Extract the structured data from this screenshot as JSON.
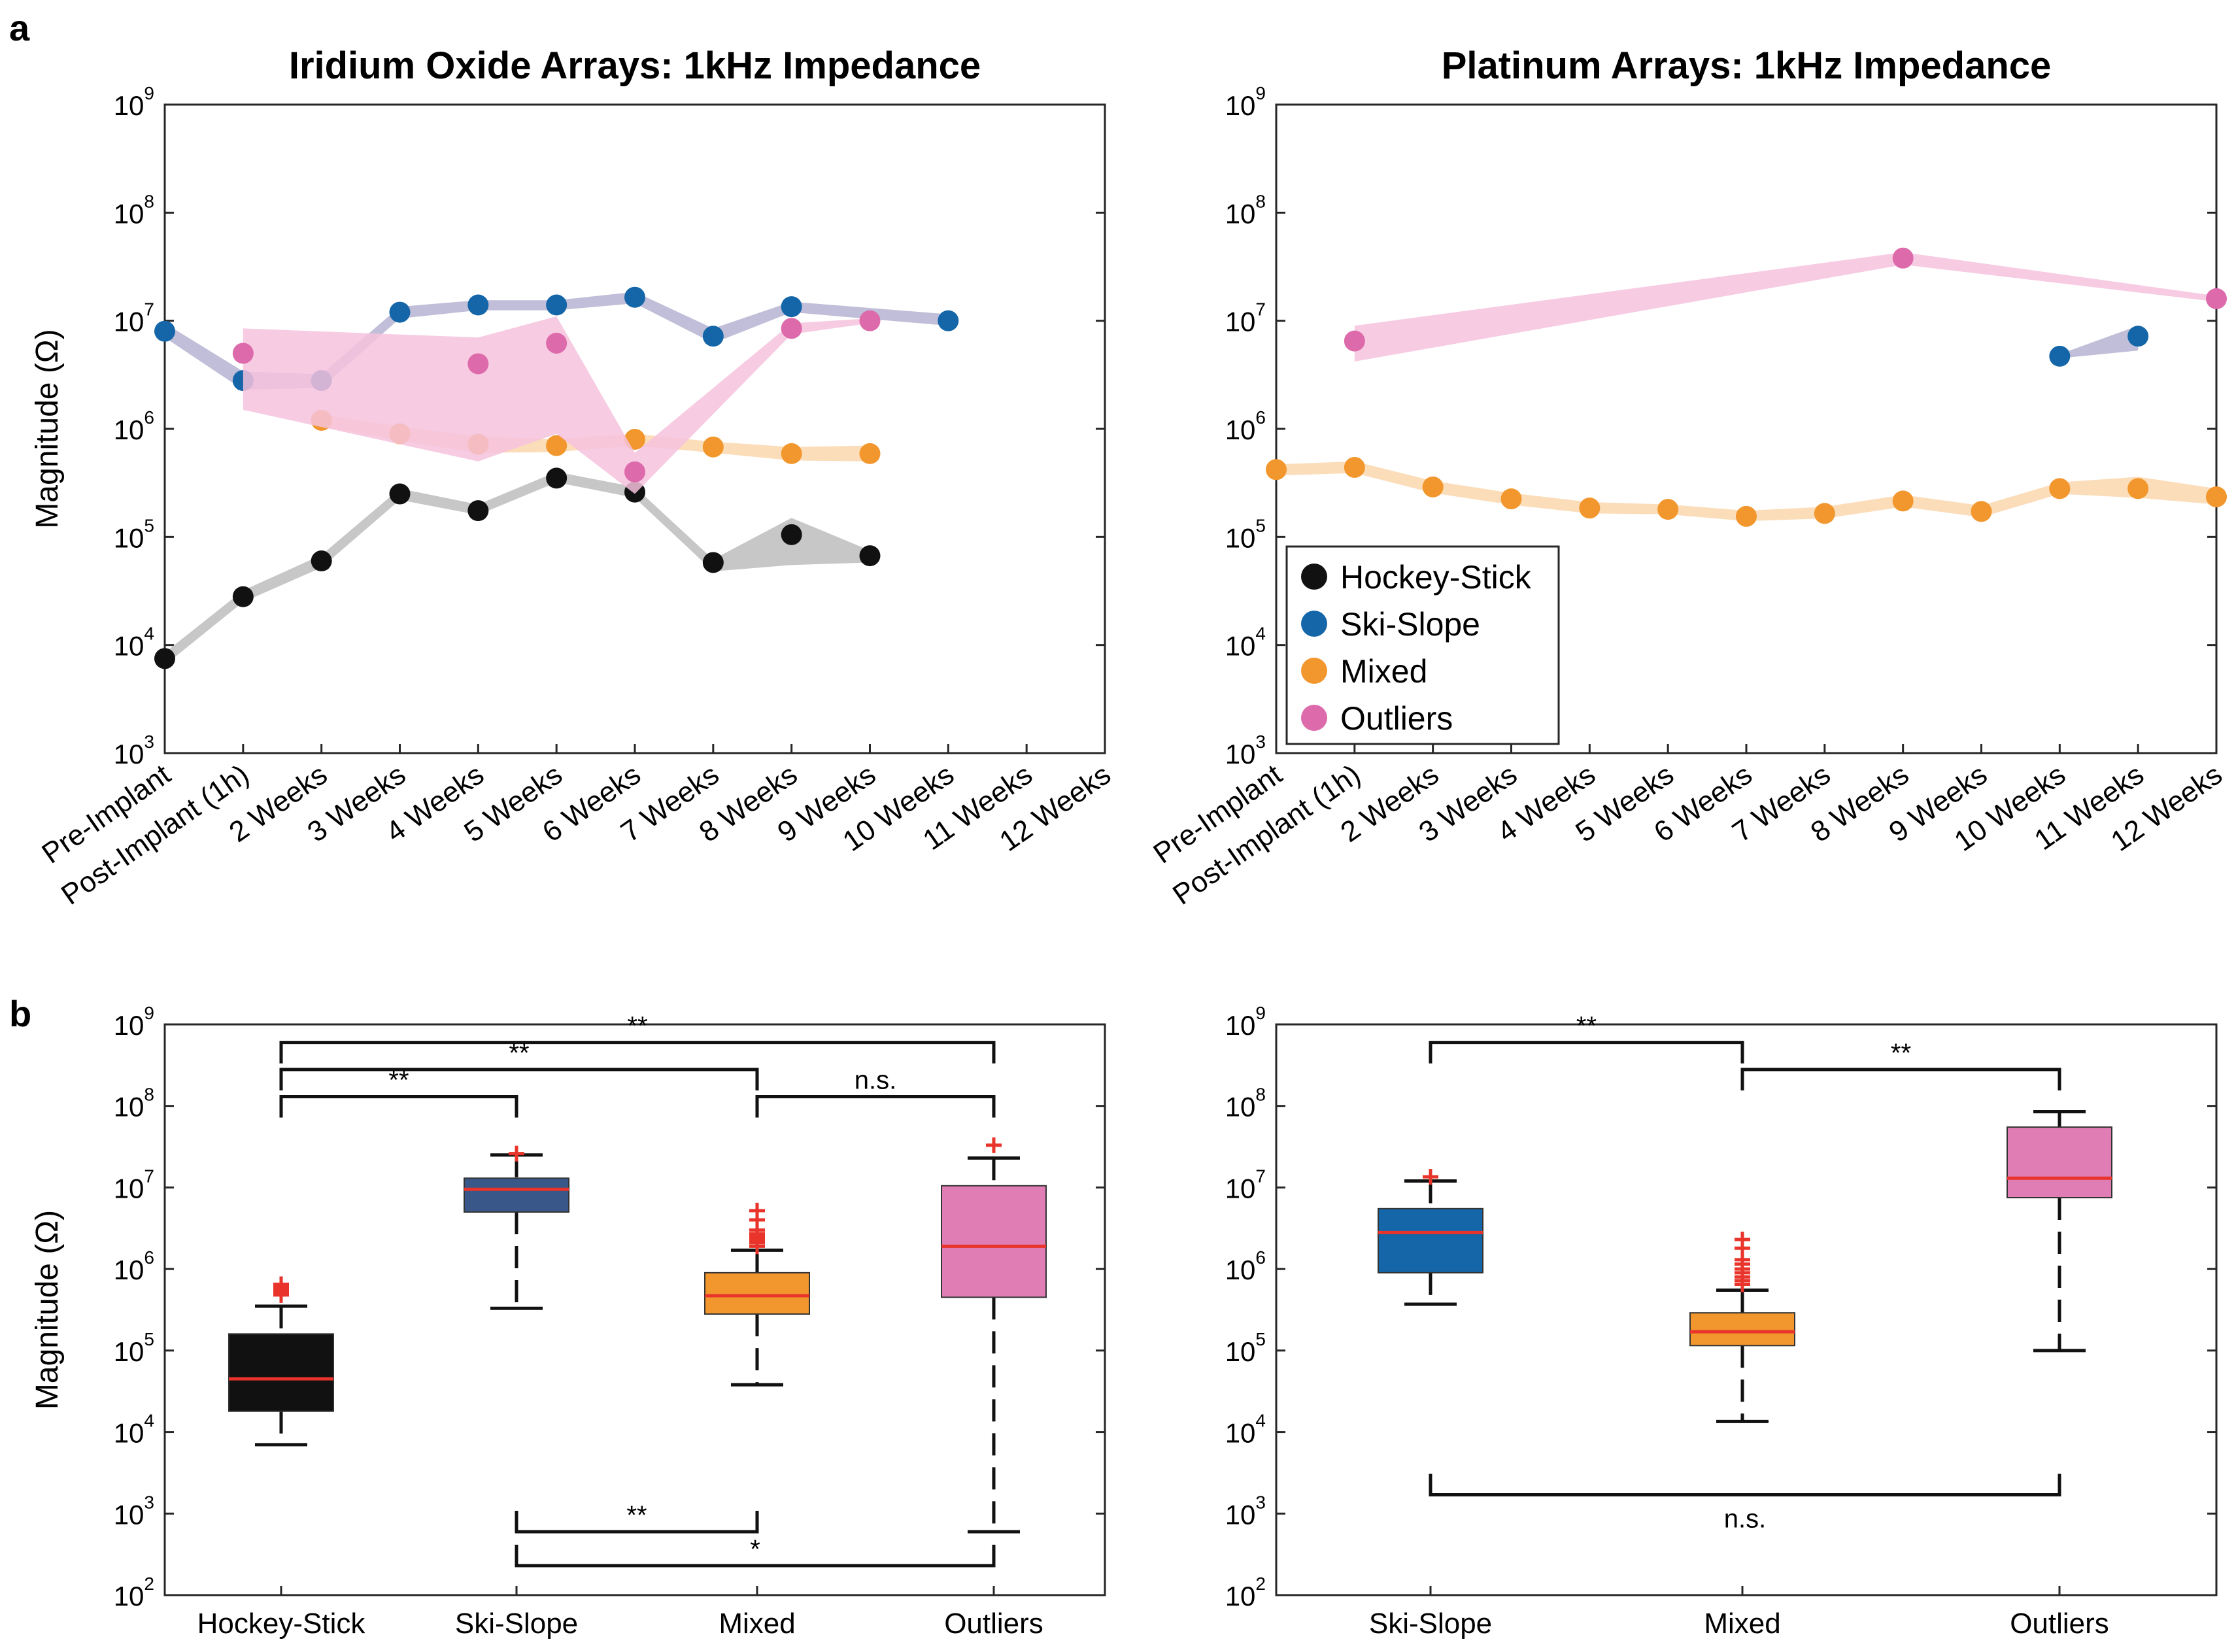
{
  "figure": {
    "panel_a_label": "a",
    "panel_b_label": "b"
  },
  "chart_data": [
    {
      "id": "a-left",
      "type": "line",
      "title": "Iridium Oxide Arrays: 1kHz Impedance",
      "ylabel": "Magnitude (Ω)",
      "yscale": "log",
      "ylim": [
        1000,
        1000000000
      ],
      "ytick_exponents": [
        3,
        4,
        5,
        6,
        7,
        8,
        9
      ],
      "categories": [
        "Pre-Implant",
        "Post-Implant (1h)",
        "2 Weeks",
        "3 Weeks",
        "4 Weeks",
        "5 Weeks",
        "6 Weeks",
        "7 Weeks",
        "8 Weeks",
        "9 Weeks",
        "10 Weeks",
        "11 Weeks",
        "12 Weeks"
      ],
      "series": [
        {
          "name": "Hockey-Stick",
          "color": "#111111",
          "band": "#bdbdbd",
          "points": [
            [
              0,
              7500
            ],
            [
              1,
              28000
            ],
            [
              2,
              60000
            ],
            [
              3,
              250000
            ],
            [
              4,
              175000
            ],
            [
              5,
              350000
            ],
            [
              6,
              260000
            ],
            [
              7,
              58000
            ],
            [
              8,
              105000
            ],
            [
              9,
              67000
            ]
          ],
          "band_hi": [
            8500,
            32000,
            68000,
            280000,
            200000,
            400000,
            290000,
            62000,
            150000,
            75000
          ],
          "band_lo": [
            6500,
            25000,
            52000,
            220000,
            160000,
            320000,
            230000,
            48000,
            55000,
            58000
          ]
        },
        {
          "name": "Ski-Slope",
          "color": "#1466a8",
          "band": "#b5b3d1",
          "points": [
            [
              0,
              8000000
            ],
            [
              1,
              2800000
            ],
            [
              2,
              2800000
            ],
            [
              3,
              12000000
            ],
            [
              4,
              14000000
            ],
            [
              5,
              14000000
            ],
            [
              6,
              16500000
            ],
            [
              7,
              7200000
            ],
            [
              8,
              13500000
            ],
            [
              10,
              10000000
            ]
          ],
          "band_hi": [
            9500000,
            3400000,
            3200000,
            13500000,
            15500000,
            15500000,
            18500000,
            8500000,
            15000000,
            11500000
          ],
          "band_lo": [
            7000000,
            2300000,
            2400000,
            10500000,
            12500000,
            12500000,
            14500000,
            6200000,
            12000000,
            9000000
          ]
        },
        {
          "name": "Mixed",
          "color": "#f2972d",
          "band": "#fad7ae",
          "points": [
            [
              2,
              1200000
            ],
            [
              3,
              900000
            ],
            [
              4,
              720000
            ],
            [
              5,
              700000
            ],
            [
              6,
              800000
            ],
            [
              7,
              680000
            ],
            [
              8,
              590000
            ],
            [
              9,
              590000
            ]
          ],
          "band_hi": [
            1350000,
            1050000,
            850000,
            800000,
            900000,
            760000,
            680000,
            700000
          ],
          "band_lo": [
            1050000,
            780000,
            600000,
            610000,
            700000,
            600000,
            510000,
            500000
          ]
        },
        {
          "name": "Outliers",
          "color": "#dd6aab",
          "band": "#f6c2dd",
          "points": [
            [
              1,
              5000000
            ],
            [
              4,
              4000000
            ],
            [
              5,
              6200000
            ],
            [
              6,
              400000
            ],
            [
              8,
              8500000
            ],
            [
              9,
              10000000
            ]
          ],
          "band_hi": [
            8500000,
            7000000,
            11000000,
            600000,
            9500000,
            10500000
          ],
          "band_lo": [
            1500000,
            500000,
            900000,
            250000,
            7500000,
            9500000
          ]
        }
      ]
    },
    {
      "id": "a-right",
      "type": "line",
      "title": "Platinum Arrays: 1kHz Impedance",
      "ylabel": "",
      "yscale": "log",
      "ylim": [
        1000,
        1000000000
      ],
      "ytick_exponents": [
        3,
        4,
        5,
        6,
        7,
        8,
        9
      ],
      "categories": [
        "Pre-Implant",
        "Post-Implant (1h)",
        "2 Weeks",
        "3 Weeks",
        "4 Weeks",
        "5 Weeks",
        "6 Weeks",
        "7 Weeks",
        "8 Weeks",
        "9 Weeks",
        "10 Weeks",
        "11 Weeks",
        "12 Weeks"
      ],
      "legend": [
        "Hockey-Stick",
        "Ski-Slope",
        "Mixed",
        "Outliers"
      ],
      "legend_colors": [
        "#111111",
        "#1466a8",
        "#f2972d",
        "#dd6aab"
      ],
      "series": [
        {
          "name": "Ski-Slope",
          "color": "#1466a8",
          "band": "#b5b3d1",
          "points": [
            [
              10,
              4700000
            ],
            [
              11,
              7200000
            ]
          ],
          "band_hi": [
            4900000,
            9000000
          ],
          "band_lo": [
            4500000,
            5300000
          ]
        },
        {
          "name": "Mixed",
          "color": "#f2972d",
          "band": "#fad7ae",
          "points": [
            [
              0,
              420000
            ],
            [
              1,
              440000
            ],
            [
              2,
              290000
            ],
            [
              3,
              225000
            ],
            [
              4,
              185000
            ],
            [
              5,
              180000
            ],
            [
              6,
              155000
            ],
            [
              7,
              165000
            ],
            [
              8,
              215000
            ],
            [
              9,
              172000
            ],
            [
              10,
              280000
            ],
            [
              11,
              280000
            ],
            [
              12,
              235000
            ]
          ],
          "band_hi": [
            470000,
            500000,
            330000,
            255000,
            210000,
            200000,
            175000,
            190000,
            245000,
            195000,
            320000,
            360000,
            280000
          ],
          "band_lo": [
            370000,
            390000,
            255000,
            198000,
            165000,
            162000,
            140000,
            148000,
            190000,
            152000,
            250000,
            230000,
            200000
          ]
        },
        {
          "name": "Outliers",
          "color": "#dd6aab",
          "band": "#f6c2dd",
          "points": [
            [
              1,
              6500000
            ],
            [
              8,
              38000000
            ],
            [
              12,
              16000000
            ]
          ],
          "band_hi": [
            9000000,
            43000000,
            17000000
          ],
          "band_lo": [
            4200000,
            33000000,
            15000000
          ]
        }
      ]
    },
    {
      "id": "b-left",
      "type": "box",
      "ylabel": "Magnitude (Ω)",
      "yscale": "log",
      "ylim": [
        100,
        1000000000
      ],
      "ytick_exponents": [
        2,
        3,
        4,
        5,
        6,
        7,
        8,
        9
      ],
      "categories": [
        "Hockey-Stick",
        "Ski-Slope",
        "Mixed",
        "Outliers"
      ],
      "boxes": [
        {
          "name": "Hockey-Stick",
          "color": "#111111",
          "whisker_lo": 7000,
          "q1": 18000,
          "median": 45000,
          "q3": 160000,
          "whisker_hi": 350000,
          "outliers": [
            480000,
            520000,
            550000,
            600000,
            650000
          ]
        },
        {
          "name": "Ski-Slope",
          "color": "#3a5789",
          "whisker_lo": 330000,
          "q1": 5000000,
          "median": 9500000,
          "q3": 13000000,
          "whisker_hi": 25000000,
          "outliers": [
            26000000
          ]
        },
        {
          "name": "Mixed",
          "color": "#f2972d",
          "whisker_lo": 38000,
          "q1": 280000,
          "median": 470000,
          "q3": 900000,
          "whisker_hi": 1700000,
          "outliers": [
            1900000,
            2100000,
            2300000,
            2500000,
            2700000,
            3000000,
            4000000,
            5200000
          ]
        },
        {
          "name": "Outliers",
          "color": "#e07db5",
          "whisker_lo": 600,
          "q1": 450000,
          "median": 1900000,
          "q3": 10500000,
          "whisker_hi": 23000000,
          "outliers": [
            33000000
          ]
        }
      ],
      "significance": [
        {
          "from": 0,
          "to": 3,
          "label": "**",
          "y": 600000000,
          "side": "top"
        },
        {
          "from": 0,
          "to": 2,
          "label": "**",
          "y": 280000000,
          "side": "top"
        },
        {
          "from": 0,
          "to": 1,
          "label": "**",
          "y": 130000000,
          "side": "top"
        },
        {
          "from": 2,
          "to": 3,
          "label": "n.s.",
          "y": 130000000,
          "side": "top"
        },
        {
          "from": 1,
          "to": 2,
          "label": "**",
          "y": 600,
          "side": "bottom"
        },
        {
          "from": 1,
          "to": 3,
          "label": "*",
          "y": 230,
          "side": "bottom"
        }
      ]
    },
    {
      "id": "b-right",
      "type": "box",
      "ylabel": "",
      "yscale": "log",
      "ylim": [
        100,
        1000000000
      ],
      "ytick_exponents": [
        2,
        3,
        4,
        5,
        6,
        7,
        8,
        9
      ],
      "categories": [
        "Ski-Slope",
        "Mixed",
        "Outliers"
      ],
      "boxes": [
        {
          "name": "Ski-Slope",
          "color": "#1466a8",
          "whisker_lo": 370000,
          "q1": 900000,
          "median": 2800000,
          "q3": 5500000,
          "whisker_hi": 12000000,
          "outliers": [
            13500000
          ]
        },
        {
          "name": "Mixed",
          "color": "#f2972d",
          "whisker_lo": 13500,
          "q1": 115000,
          "median": 170000,
          "q3": 290000,
          "whisker_hi": 550000,
          "outliers": [
            650000,
            720000,
            800000,
            900000,
            1000000,
            1150000,
            1300000,
            1800000,
            2300000
          ]
        },
        {
          "name": "Outliers",
          "color": "#e07db5",
          "whisker_lo": 100000,
          "q1": 7500000,
          "median": 13000000,
          "q3": 55000000,
          "whisker_hi": 85000000,
          "outliers": []
        }
      ],
      "significance": [
        {
          "from": 0,
          "to": 1,
          "label": "**",
          "y": 600000000,
          "side": "top"
        },
        {
          "from": 1,
          "to": 2,
          "label": "**",
          "y": 280000000,
          "side": "top"
        },
        {
          "from": 0,
          "to": 2,
          "label": "n.s.",
          "y": 1700,
          "side": "bottom"
        }
      ]
    }
  ]
}
